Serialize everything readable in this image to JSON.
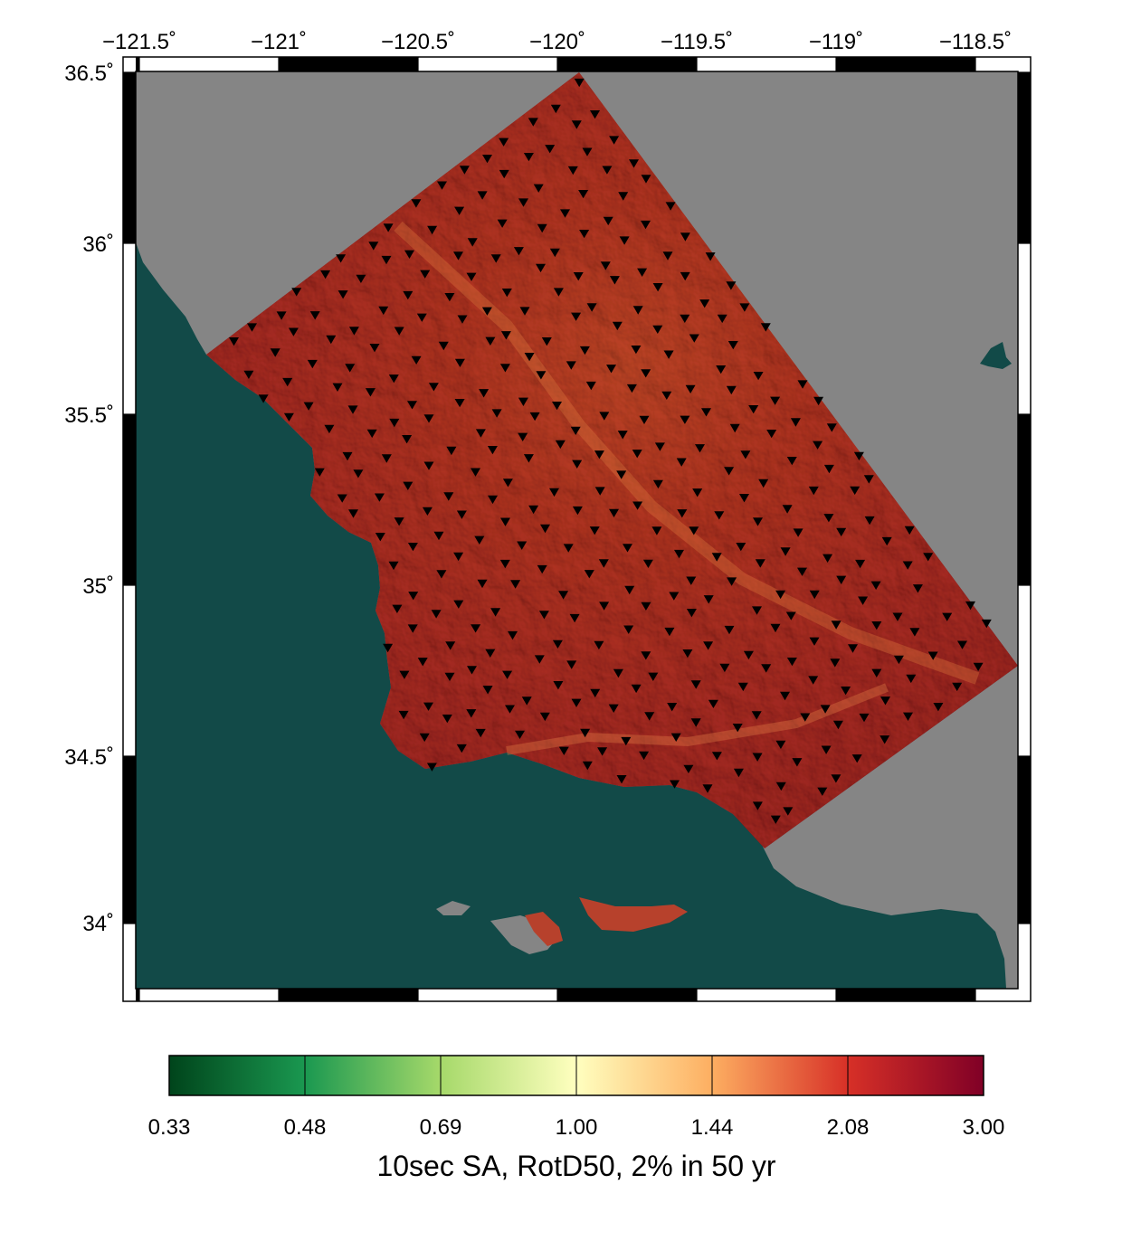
{
  "map": {
    "lon_ticks": [
      "−121.5˚",
      "−121˚",
      "−120.5˚",
      "−120˚",
      "−119.5˚",
      "−119˚",
      "−118.5˚"
    ],
    "lat_ticks": [
      "36.5˚",
      "36˚",
      "35.5˚",
      "35˚",
      "34.5˚",
      "34˚"
    ],
    "lon_range": [
      -121.55,
      -118.45
    ],
    "lat_range": [
      33.8,
      36.52
    ],
    "land_color": "#858585",
    "ocean_color": "#124a48",
    "site_marker": "inverted-triangle"
  },
  "colorbar": {
    "title": "10sec SA, RotD50, 2% in 50 yr",
    "labels": [
      "0.33",
      "0.48",
      "0.69",
      "1.00",
      "1.44",
      "2.08",
      "3.00"
    ],
    "colors": [
      "#00441b",
      "#1a9850",
      "#a6d96a",
      "#ffffbf",
      "#fdae61",
      "#d73027",
      "#800026"
    ]
  }
}
